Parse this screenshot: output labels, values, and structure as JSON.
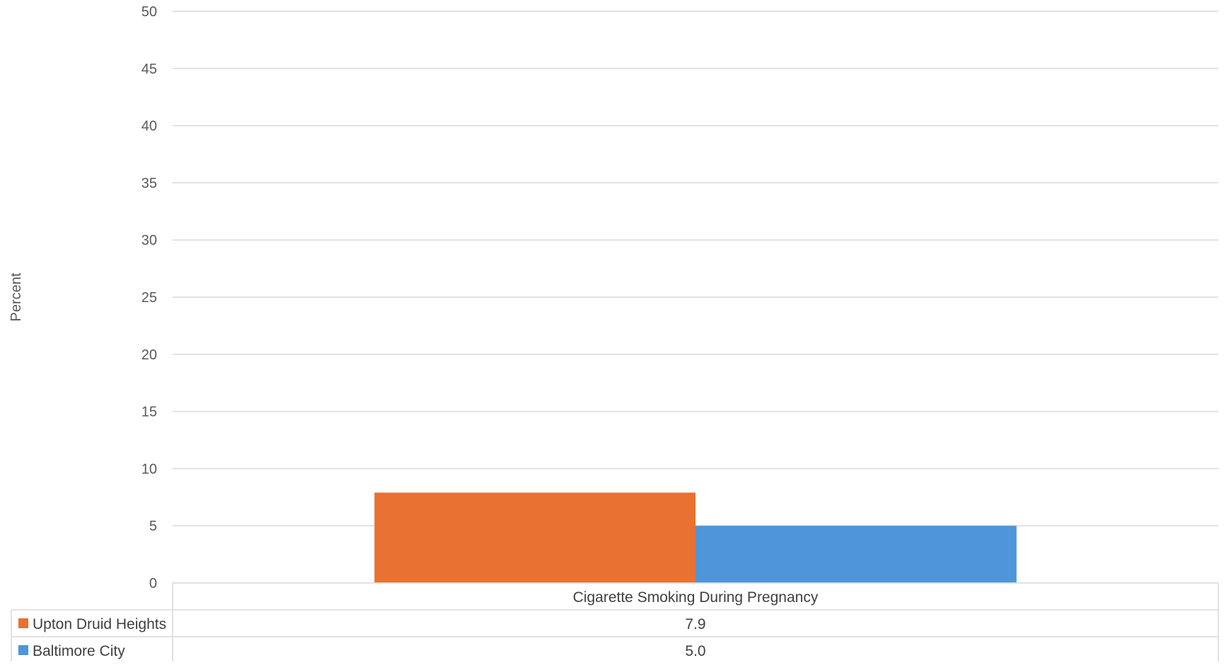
{
  "chart_data": {
    "type": "bar",
    "title": "",
    "ylabel": "Percent",
    "xlabel": "",
    "ylim": [
      0,
      50
    ],
    "yticks": [
      0,
      5,
      10,
      15,
      20,
      25,
      30,
      35,
      40,
      45,
      50
    ],
    "categories": [
      "Cigarette Smoking During Pregnancy"
    ],
    "series": [
      {
        "name": "Upton Druid Heights",
        "values": [
          7.9
        ],
        "value_labels": [
          "7.9"
        ],
        "color": "#E97132"
      },
      {
        "name": "Baltimore City",
        "values": [
          5.0
        ],
        "value_labels": [
          "5.0"
        ],
        "color": "#4E95D9"
      }
    ],
    "grid": true,
    "legend": "data-table-below"
  }
}
